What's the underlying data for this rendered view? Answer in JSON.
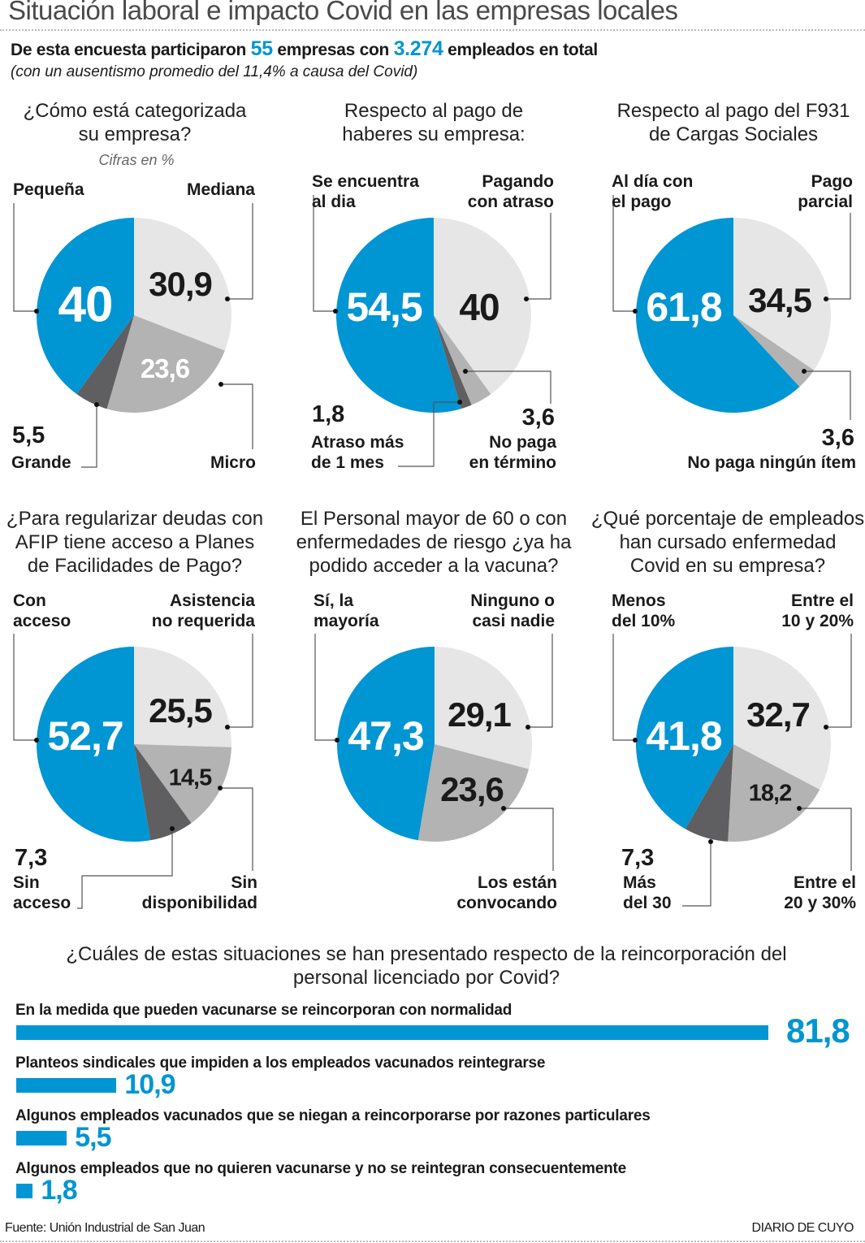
{
  "header": {
    "title": "Situación laboral e impacto Covid en las empresas locales",
    "subtitle_a": "De esta encuesta participaron ",
    "companies": "55",
    "subtitle_b": " empresas con ",
    "employees": "3.274",
    "subtitle_c": " empleados en total",
    "note": "(con un ausentismo promedio del 11,4% a causa del Covid)",
    "units": "Cifras en %"
  },
  "colors": {
    "blue": "#0095d3",
    "light": "#e6e6e6",
    "mid": "#b4b3b4",
    "dark": "#5f5e60"
  },
  "chart_data": [
    {
      "type": "pie",
      "title": "¿Cómo está categorizada\nsu empresa?",
      "slices": [
        {
          "label": "Mediana",
          "value": 30.9,
          "display": "30,9",
          "color": "#e6e6e6"
        },
        {
          "label": "Micro",
          "value": 23.6,
          "display": "23,6",
          "color": "#b4b3b4"
        },
        {
          "label": "Grande",
          "value": 5.5,
          "display": "5,5",
          "color": "#5f5e60"
        },
        {
          "label": "Pequeña",
          "value": 40,
          "display": "40",
          "color": "#0095d3"
        }
      ]
    },
    {
      "type": "pie",
      "title": "Respecto al pago de\nhaberes su empresa:",
      "slices": [
        {
          "label": "Pagando\ncon atraso",
          "value": 40,
          "display": "40",
          "color": "#e6e6e6"
        },
        {
          "label": "No paga\nen término",
          "value": 3.6,
          "display": "3,6",
          "color": "#b4b3b4"
        },
        {
          "label": "Atraso más\nde 1 mes",
          "value": 1.8,
          "display": "1,8",
          "color": "#5f5e60"
        },
        {
          "label": "Se encuentra\nal dia",
          "value": 54.5,
          "display": "54,5",
          "color": "#0095d3"
        }
      ]
    },
    {
      "type": "pie",
      "title": "Respecto al pago del F931\nde Cargas Sociales",
      "slices": [
        {
          "label": "Pago\nparcial",
          "value": 34.5,
          "display": "34,5",
          "color": "#e6e6e6"
        },
        {
          "label": "No paga ningún ítem",
          "value": 3.6,
          "display": "3,6",
          "color": "#b4b3b4"
        },
        {
          "label": "Al día con\nel pago",
          "value": 61.8,
          "display": "61,8",
          "color": "#0095d3"
        }
      ]
    },
    {
      "type": "pie",
      "title": "¿Para regularizar deudas con\nAFIP tiene acceso a Planes\nde Facilidades de Pago?",
      "slices": [
        {
          "label": "Asistencia\nno requerida",
          "value": 25.5,
          "display": "25,5",
          "color": "#e6e6e6"
        },
        {
          "label": "Sin\ndisponibilidad",
          "value": 14.5,
          "display": "14,5",
          "color": "#b4b3b4"
        },
        {
          "label": "Sin\nacceso",
          "value": 7.3,
          "display": "7,3",
          "color": "#5f5e60"
        },
        {
          "label": "Con\nacceso",
          "value": 52.7,
          "display": "52,7",
          "color": "#0095d3"
        }
      ]
    },
    {
      "type": "pie",
      "title": "El Personal mayor de 60 o con\nenfermedades de riesgo ¿ya ha\npodido acceder a la vacuna?",
      "slices": [
        {
          "label": "Ninguno o\ncasi nadie",
          "value": 29.1,
          "display": "29,1",
          "color": "#e6e6e6"
        },
        {
          "label": "Los están\nconvocando",
          "value": 23.6,
          "display": "23,6",
          "color": "#b4b3b4"
        },
        {
          "label": "Sí, la\nmayoría",
          "value": 47.3,
          "display": "47,3",
          "color": "#0095d3"
        }
      ]
    },
    {
      "type": "pie",
      "title": "¿Qué porcentaje de empleados\nhan cursado enfermedad\nCovid en su empresa?",
      "slices": [
        {
          "label": "Entre el\n10 y 20%",
          "value": 32.7,
          "display": "32,7",
          "color": "#e6e6e6"
        },
        {
          "label": "Entre el\n20 y 30%",
          "value": 18.2,
          "display": "18,2",
          "color": "#b4b3b4"
        },
        {
          "label": "Más\ndel 30",
          "value": 7.3,
          "display": "7,3",
          "color": "#5f5e60"
        },
        {
          "label": "Menos\ndel 10%",
          "value": 41.8,
          "display": "41,8",
          "color": "#0095d3"
        }
      ]
    },
    {
      "type": "bar",
      "orientation": "horizontal",
      "title": "¿Cuáles de estas situaciones se han presentado respecto de la reincorporación del\npersonal licenciado por Covid?",
      "color": "#0095d3",
      "bars": [
        {
          "label": "En la medida que pueden vacunarse se reincorporan con normalidad",
          "value": 81.8,
          "display": "81,8"
        },
        {
          "label": "Planteos sindicales que impiden a los empleados vacunados reintegrarse",
          "value": 10.9,
          "display": "10,9"
        },
        {
          "label": "Algunos empleados vacunados que se niegan a reincorporarse por razones particulares",
          "value": 5.5,
          "display": "5,5"
        },
        {
          "label": "Algunos empleados que no quieren vacunarse y no se reintegran consecuentemente",
          "value": 1.8,
          "display": "1,8"
        }
      ]
    }
  ],
  "footer": {
    "source": "Fuente: Unión Industrial de San Juan",
    "brand": "DIARIO DE CUYO"
  }
}
